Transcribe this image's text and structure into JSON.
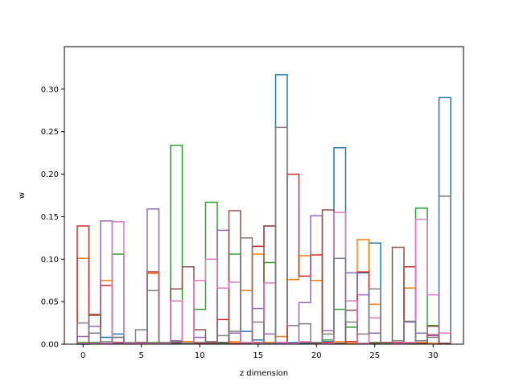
{
  "chart_data": {
    "type": "step",
    "xlabel": "z dimension",
    "ylabel": "w",
    "xlim": [
      -1.6,
      32.6
    ],
    "ylim": [
      0,
      0.35
    ],
    "xticks": [
      0,
      5,
      10,
      15,
      20,
      25,
      30
    ],
    "xtick_labels": [
      "0",
      "5",
      "10",
      "15",
      "20",
      "25",
      "30"
    ],
    "yticks": [
      0.0,
      0.05,
      0.1,
      0.15,
      0.2,
      0.25,
      0.3
    ],
    "ytick_labels": [
      "0.00",
      "0.05",
      "0.10",
      "0.15",
      "0.20",
      "0.25",
      "0.30"
    ],
    "x": [
      0,
      1,
      2,
      3,
      4,
      5,
      6,
      7,
      8,
      9,
      10,
      11,
      12,
      13,
      14,
      15,
      16,
      17,
      18,
      19,
      20,
      21,
      22,
      23,
      24,
      25,
      26,
      27,
      28,
      29,
      30,
      31
    ],
    "series": [
      {
        "color": "#1f77b4",
        "values": [
          0.0,
          0.002,
          0.008,
          0.012,
          0.001,
          0.002,
          0.085,
          0.001,
          0.001,
          0.003,
          0.001,
          0.003,
          0.002,
          0.013,
          0.015,
          0.005,
          0.002,
          0.317,
          0.002,
          0.001,
          0.001,
          0.003,
          0.231,
          0.001,
          0.084,
          0.119,
          0.002,
          0.001,
          0.001,
          0.001,
          0.001,
          0.29
        ]
      },
      {
        "color": "#ff7f0e",
        "values": [
          0.101,
          0.002,
          0.075,
          0.001,
          0.001,
          0.001,
          0.083,
          0.002,
          0.003,
          0.003,
          0.002,
          0.001,
          0.066,
          0.003,
          0.063,
          0.106,
          0.002,
          0.009,
          0.076,
          0.104,
          0.075,
          0.002,
          0.003,
          0.001,
          0.123,
          0.047,
          0.002,
          0.001,
          0.066,
          0.002,
          0.001,
          0.001
        ]
      },
      {
        "color": "#2ca02c",
        "values": [
          0.002,
          0.002,
          0.001,
          0.106,
          0.001,
          0.002,
          0.002,
          0.001,
          0.234,
          0.001,
          0.041,
          0.167,
          0.001,
          0.106,
          0.002,
          0.001,
          0.096,
          0.002,
          0.001,
          0.002,
          0.001,
          0.005,
          0.041,
          0.02,
          0.001,
          0.002,
          0.001,
          0.001,
          0.002,
          0.16,
          0.022,
          0.001
        ]
      },
      {
        "color": "#d62728",
        "values": [
          0.139,
          0.034,
          0.069,
          0.002,
          0.001,
          0.001,
          0.085,
          0.001,
          0.002,
          0.001,
          0.001,
          0.002,
          0.029,
          0.001,
          0.001,
          0.115,
          0.139,
          0.001,
          0.2,
          0.08,
          0.105,
          0.002,
          0.001,
          0.003,
          0.085,
          0.001,
          0.001,
          0.002,
          0.091,
          0.001,
          0.011,
          0.001
        ]
      },
      {
        "color": "#9467bd",
        "values": [
          0.009,
          0.021,
          0.145,
          0.001,
          0.001,
          0.001,
          0.159,
          0.001,
          0.004,
          0.001,
          0.008,
          0.001,
          0.134,
          0.013,
          0.002,
          0.042,
          0.012,
          0.001,
          0.001,
          0.049,
          0.151,
          0.016,
          0.001,
          0.084,
          0.058,
          0.013,
          0.001,
          0.001,
          0.026,
          0.013,
          0.01,
          0.001
        ]
      },
      {
        "color": "#8c564b",
        "values": [
          0.001,
          0.035,
          0.001,
          0.008,
          0.001,
          0.002,
          0.001,
          0.001,
          0.065,
          0.091,
          0.017,
          0.001,
          0.002,
          0.157,
          0.001,
          0.002,
          0.139,
          0.002,
          0.001,
          0.002,
          0.001,
          0.158,
          0.001,
          0.04,
          0.001,
          0.001,
          0.002,
          0.114,
          0.001,
          0.001,
          0.021,
          0.001
        ]
      },
      {
        "color": "#e377c2",
        "values": [
          0.001,
          0.001,
          0.001,
          0.144,
          0.001,
          0.001,
          0.001,
          0.001,
          0.051,
          0.001,
          0.075,
          0.1,
          0.066,
          0.073,
          0.002,
          0.001,
          0.072,
          0.002,
          0.001,
          0.003,
          0.002,
          0.001,
          0.155,
          0.051,
          0.001,
          0.031,
          0.001,
          0.001,
          0.002,
          0.147,
          0.058,
          0.013
        ]
      },
      {
        "color": "#7f7f7f",
        "values": [
          0.025,
          0.013,
          0.003,
          0.008,
          0.002,
          0.017,
          0.063,
          0.002,
          0.003,
          0.001,
          0.002,
          0.003,
          0.01,
          0.015,
          0.125,
          0.026,
          0.001,
          0.255,
          0.022,
          0.024,
          0.002,
          0.012,
          0.101,
          0.026,
          0.012,
          0.065,
          0.001,
          0.004,
          0.027,
          0.004,
          0.008,
          0.174
        ]
      }
    ]
  }
}
